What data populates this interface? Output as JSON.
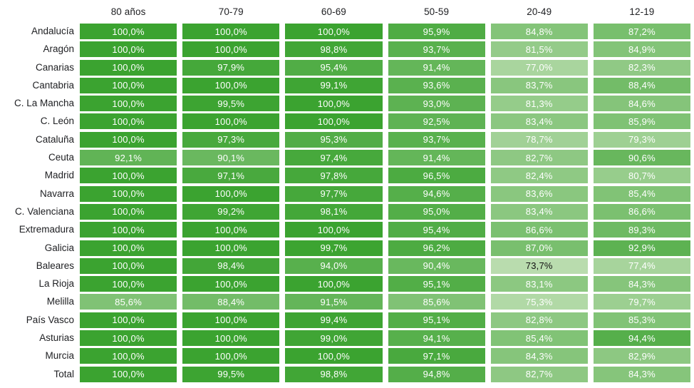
{
  "chart_data": {
    "type": "heatmap",
    "title": "",
    "columns": [
      "80 años",
      "70-79",
      "60-69",
      "50-59",
      "20-49",
      "12-19"
    ],
    "rows": [
      "Andalucía",
      "Aragón",
      "Canarias",
      "Cantabria",
      "C. La Mancha",
      "C. León",
      "Cataluña",
      "Ceuta",
      "Madrid",
      "Navarra",
      "C. Valenciana",
      "Extremadura",
      "Galicia",
      "Baleares",
      "La Rioja",
      "Melilla",
      "País Vasco",
      "Asturias",
      "Murcia",
      "Total"
    ],
    "values": [
      [
        100.0,
        100.0,
        100.0,
        95.9,
        84.8,
        87.2
      ],
      [
        100.0,
        100.0,
        98.8,
        93.7,
        81.5,
        84.9
      ],
      [
        100.0,
        97.9,
        95.4,
        91.4,
        77.0,
        82.3
      ],
      [
        100.0,
        100.0,
        99.1,
        93.6,
        83.7,
        88.4
      ],
      [
        100.0,
        99.5,
        100.0,
        93.0,
        81.3,
        84.6
      ],
      [
        100.0,
        100.0,
        100.0,
        92.5,
        83.4,
        85.9
      ],
      [
        100.0,
        97.3,
        95.3,
        93.7,
        78.7,
        79.3
      ],
      [
        92.1,
        90.1,
        97.4,
        91.4,
        82.7,
        90.6
      ],
      [
        100.0,
        97.1,
        97.8,
        96.5,
        82.4,
        80.7
      ],
      [
        100.0,
        100.0,
        97.7,
        94.6,
        83.6,
        85.4
      ],
      [
        100.0,
        99.2,
        98.1,
        95.0,
        83.4,
        86.6
      ],
      [
        100.0,
        100.0,
        100.0,
        95.4,
        86.6,
        89.3
      ],
      [
        100.0,
        100.0,
        99.7,
        96.2,
        87.0,
        92.9
      ],
      [
        100.0,
        98.4,
        94.0,
        90.4,
        73.7,
        77.4
      ],
      [
        100.0,
        100.0,
        100.0,
        95.1,
        83.1,
        84.3
      ],
      [
        85.6,
        88.4,
        91.5,
        85.6,
        75.3,
        79.7
      ],
      [
        100.0,
        100.0,
        99.4,
        95.1,
        82.8,
        85.3
      ],
      [
        100.0,
        100.0,
        99.0,
        94.1,
        85.4,
        94.4
      ],
      [
        100.0,
        100.0,
        100.0,
        97.1,
        84.3,
        82.9
      ],
      [
        100.0,
        99.5,
        98.8,
        94.8,
        82.7,
        84.3
      ]
    ],
    "value_suffix": "%",
    "decimal_separator": ",",
    "decimals": 1,
    "legend_position": "none",
    "color_scale": {
      "min_value": 73.7,
      "max_value": 100.0,
      "min_color": "#b9dcae",
      "max_color": "#3ba330",
      "cell_text_color": "#ffffff",
      "min_cell_text_color": "#111111",
      "dark_text_threshold": 74.5
    }
  }
}
